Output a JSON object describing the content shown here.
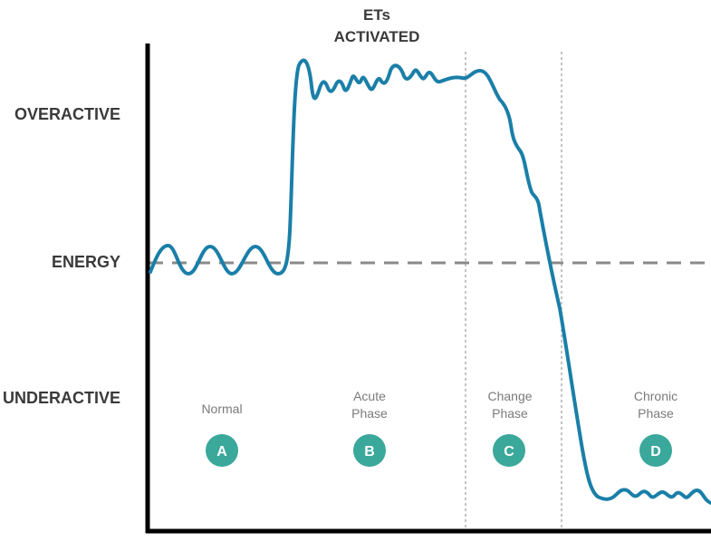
{
  "title_lines": [
    "ETs",
    "ACTIVATED"
  ],
  "y_labels": {
    "top": "OVERACTIVE",
    "middle": "ENERGY",
    "bottom": "UNDERACTIVE"
  },
  "phases": [
    {
      "lines": [
        "Normal"
      ],
      "badge": "A"
    },
    {
      "lines": [
        "Acute",
        "Phase"
      ],
      "badge": "B"
    },
    {
      "lines": [
        "Change",
        "Phase"
      ],
      "badge": "C"
    },
    {
      "lines": [
        "Chronic",
        "Phase"
      ],
      "badge": "D"
    }
  ],
  "colors": {
    "curve": "#1a7fa8",
    "axis": "#000000",
    "baseline": "#8a8a8a",
    "divider": "#8a8a8a",
    "badge": "#3aa89a",
    "label": "#3a3a3a",
    "phase_label": "#7a7a7a"
  }
}
